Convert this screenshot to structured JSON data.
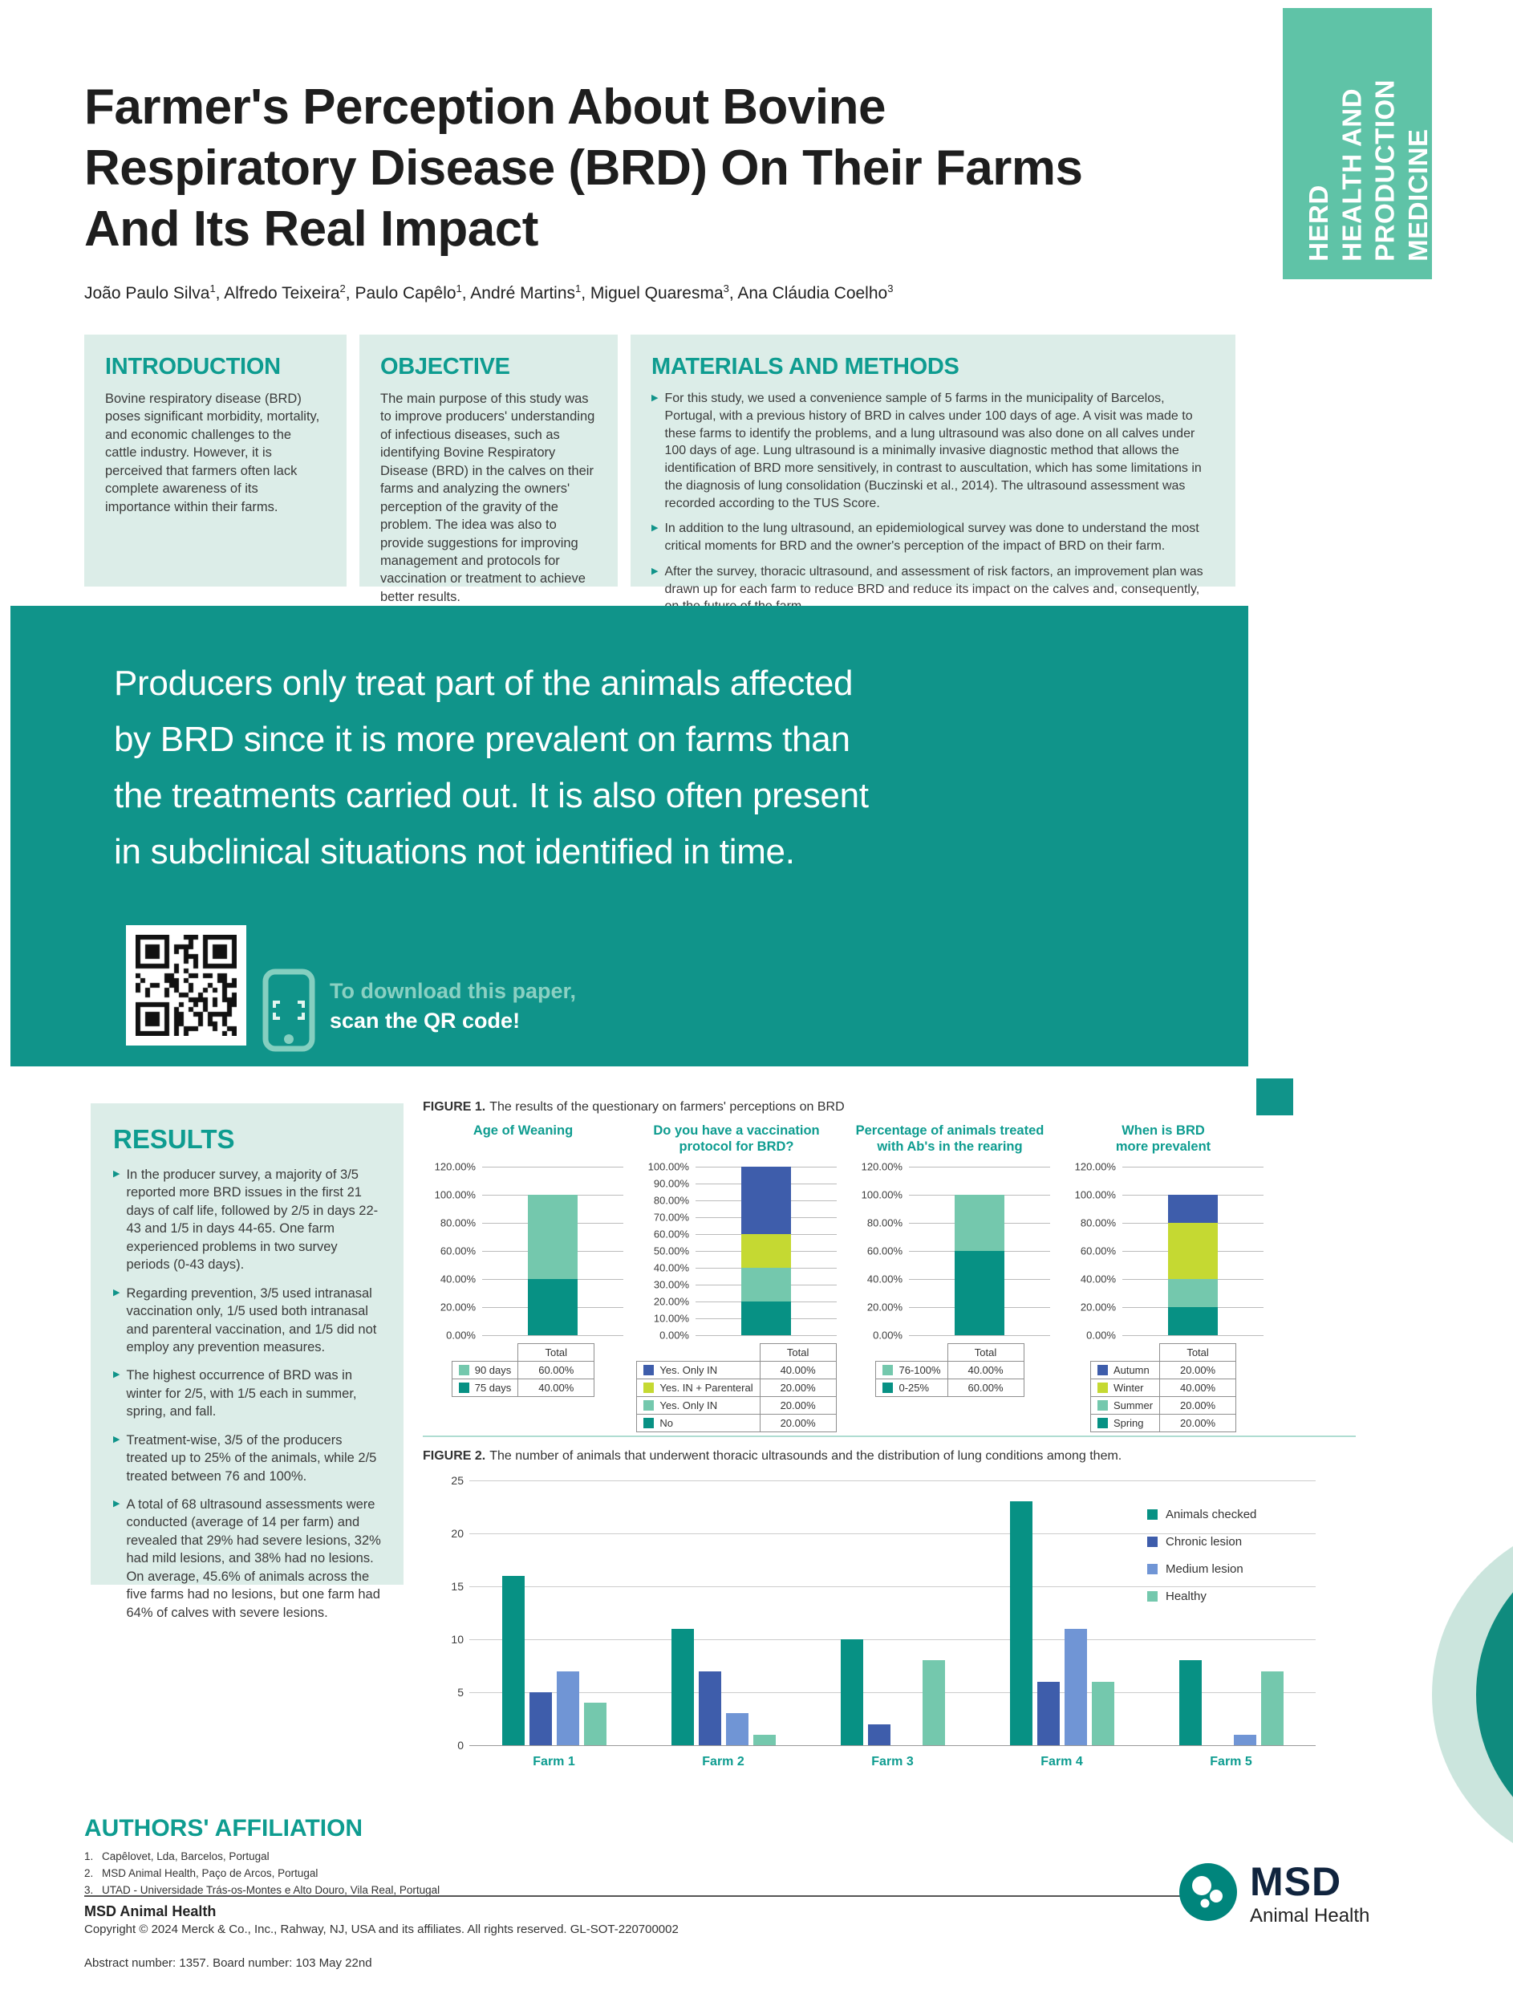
{
  "banner": {
    "label": "HERD\nHEALTH AND\nPRODUCTION\nMEDICINE"
  },
  "header": {
    "title_lines": [
      "Farmer's Perception About Bovine",
      "Respiratory Disease (BRD) On Their Farms",
      "And Its Real Impact"
    ],
    "authors": [
      {
        "name": "João Paulo Silva",
        "sup": "1"
      },
      {
        "name": "Alfredo Teixeira",
        "sup": "2"
      },
      {
        "name": "Paulo Capêlo",
        "sup": "1"
      },
      {
        "name": "André Martins",
        "sup": "1"
      },
      {
        "name": "Miguel Quaresma",
        "sup": "3"
      },
      {
        "name": "Ana Cláudia Coelho",
        "sup": "3"
      }
    ]
  },
  "sections": {
    "introduction": {
      "heading": "INTRODUCTION",
      "body": "Bovine respiratory disease (BRD) poses significant morbidity, mortality, and economic challenges to the cattle industry. However, it is perceived that farmers often lack complete awareness of its importance within their farms."
    },
    "objective": {
      "heading": "OBJECTIVE",
      "body": "The main purpose of this study was to improve producers' understanding of infectious diseases, such as identifying Bovine Respiratory Disease (BRD) in the calves on their farms and analyzing the owners' perception of the gravity of the problem. The idea was also to provide suggestions for improving management and protocols for vaccination or treatment to achieve better results."
    },
    "materials": {
      "heading": "MATERIALS AND METHODS",
      "bullets": [
        "For this study, we used a convenience sample of 5 farms in the municipality of Barcelos, Portugal, with a previous history of BRD in calves under 100 days of age. A visit was made to these farms to identify the problems, and a lung ultrasound was also done on all calves under 100 days of age. Lung ultrasound is a minimally invasive diagnostic method that allows the identification of BRD more sensitively, in contrast to auscultation, which has some limitations in the diagnosis of lung consolidation (Buczinski et al., 2014). The ultrasound assessment was recorded according to the TUS Score.",
        "In addition to the lung ultrasound, an epidemiological survey was done to understand the most critical moments for BRD and the owner's perception of the impact of BRD on their farm.",
        "After the survey, thoracic ultrasound, and assessment of risk factors, an improvement plan was drawn up for each farm to reduce BRD and reduce its impact on the calves and, consequently, on the future of the farm."
      ]
    }
  },
  "callout": {
    "lines": [
      "Producers only treat part of the animals affected",
      "by BRD since it is more prevalent on farms than",
      "the treatments carried out. It is also often present",
      "in subclinical situations not identified in time."
    ],
    "download_line1": "To download this paper,",
    "download_line2": "scan the QR code!"
  },
  "results": {
    "heading": "RESULTS",
    "bullets": [
      "In the producer survey, a majority of 3/5 reported more BRD issues in the first 21 days of calf life, followed by 2/5 in days 22-43 and 1/5 in days 44-65. One farm experienced problems in two survey periods (0-43 days).",
      "Regarding prevention, 3/5 used intranasal vaccination only, 1/5 used both intranasal and parenteral vaccination, and 1/5 did not employ any prevention measures.",
      "The highest occurrence of BRD was in winter for 2/5, with 1/5 each in summer, spring, and fall.",
      "Treatment-wise, 3/5 of the producers treated up to 25% of the animals, while 2/5 treated between 76 and 100%.",
      "A total of 68 ultrasound assessments were conducted (average of 14 per farm) and revealed that 29% had severe lesions, 32% had mild lesions, and 38% had no lesions. On average, 45.6% of animals across the five farms had no lesions, but one farm had 64% of calves with severe lesions."
    ]
  },
  "figure1": {
    "label": "FIGURE 1.",
    "caption": "The results of the questionary on farmers' perceptions on BRD"
  },
  "figure2": {
    "label": "FIGURE 2.",
    "caption": "The number of animals that underwent thoracic ultrasounds and the distribution of lung conditions among them."
  },
  "chart_data": [
    {
      "id": "age_of_weaning",
      "type": "bar",
      "subtype": "stacked_single_column",
      "title": "Age of Weaning",
      "ylim": [
        0,
        120
      ],
      "yticks": [
        "120.00%",
        "100.00%",
        "80.00%",
        "60.00%",
        "40.00%",
        "20.00%",
        "0.00%"
      ],
      "legend_header": "Total",
      "segments": [
        {
          "label": "90 days",
          "value": 60,
          "display": "60.00%",
          "color": "#74C8AD"
        },
        {
          "label": "75 days",
          "value": 40,
          "display": "40.00%",
          "color": "#079184"
        }
      ]
    },
    {
      "id": "vaccination_protocol",
      "type": "bar",
      "subtype": "stacked_single_column",
      "title": "Do you have a vaccination\nprotocol for BRD?",
      "ylim": [
        0,
        100
      ],
      "yticks": [
        "100.00%",
        "90.00%",
        "80.00%",
        "70.00%",
        "60.00%",
        "50.00%",
        "40.00%",
        "30.00%",
        "20.00%",
        "10.00%",
        "0.00%"
      ],
      "legend_header": "Total",
      "segments": [
        {
          "label": "Yes. Only IN",
          "value": 40,
          "display": "40.00%",
          "color": "#3E5DAB"
        },
        {
          "label": "Yes. IN + Parenteral",
          "value": 20,
          "display": "20.00%",
          "color": "#C5D932"
        },
        {
          "label": "Yes. Only IN",
          "value": 20,
          "display": "20.00%",
          "color": "#74C8AD"
        },
        {
          "label": "No",
          "value": 20,
          "display": "20.00%",
          "color": "#079184"
        }
      ]
    },
    {
      "id": "animals_treated_antibiotics",
      "type": "bar",
      "subtype": "stacked_single_column",
      "title": "Percentage of animals treated\nwith Ab's in the rearing",
      "ylim": [
        0,
        120
      ],
      "yticks": [
        "120.00%",
        "100.00%",
        "80.00%",
        "60.00%",
        "40.00%",
        "20.00%",
        "0.00%"
      ],
      "legend_header": "Total",
      "segments": [
        {
          "label": "76-100%",
          "value": 40,
          "display": "40.00%",
          "color": "#74C8AD"
        },
        {
          "label": "0-25%",
          "value": 60,
          "display": "60.00%",
          "color": "#079184"
        }
      ]
    },
    {
      "id": "brd_season_prevalence",
      "type": "bar",
      "subtype": "stacked_single_column",
      "title": "When is BRD\nmore prevalent",
      "ylim": [
        0,
        120
      ],
      "yticks": [
        "120.00%",
        "100.00%",
        "80.00%",
        "60.00%",
        "40.00%",
        "20.00%",
        "0.00%"
      ],
      "legend_header": "Total",
      "segments": [
        {
          "label": "Autumn",
          "value": 20,
          "display": "20.00%",
          "color": "#3E5DAB"
        },
        {
          "label": "Winter",
          "value": 40,
          "display": "40.00%",
          "color": "#C5D932"
        },
        {
          "label": "Summer",
          "value": 20,
          "display": "20.00%",
          "color": "#74C8AD"
        },
        {
          "label": "Spring",
          "value": 20,
          "display": "20.00%",
          "color": "#079184"
        }
      ]
    },
    {
      "id": "ultrasound_by_farm",
      "type": "bar",
      "subtype": "grouped",
      "categories": [
        "Farm 1",
        "Farm 2",
        "Farm 3",
        "Farm 4",
        "Farm 5"
      ],
      "series": [
        {
          "name": "Animals checked",
          "color": "#079184",
          "values": [
            16,
            11,
            10,
            23,
            8
          ]
        },
        {
          "name": "Chronic lesion",
          "color": "#3E5DAB",
          "values": [
            5,
            7,
            2,
            6,
            0
          ]
        },
        {
          "name": "Medium lesion",
          "color": "#7095D5",
          "values": [
            7,
            3,
            0,
            11,
            1
          ]
        },
        {
          "name": "Healthy",
          "color": "#74C8AD",
          "values": [
            4,
            1,
            8,
            6,
            7
          ]
        }
      ],
      "ylim": [
        0,
        25
      ],
      "yticks": [
        0,
        5,
        10,
        15,
        20,
        25
      ],
      "legend_position": "right",
      "grid": true
    }
  ],
  "affiliation": {
    "heading": "AUTHORS' AFFILIATION",
    "items": [
      "Capêlovet, Lda, Barcelos, Portugal",
      "MSD Animal Health, Paço de Arcos, Portugal",
      "UTAD - Universidade Trás-os-Montes e Alto Douro, Vila Real, Portugal"
    ]
  },
  "footer": {
    "company": "MSD Animal Health",
    "copyright": "Copyright © 2024 Merck & Co., Inc., Rahway, NJ, USA and its affiliates. All rights reserved. GL-SOT-220700002",
    "abstract": "Abstract number: 1357. Board number: 103 May 22nd",
    "logo_text": "MSD",
    "logo_sub": "Animal Health"
  },
  "colors": {
    "brand_teal": "#10948A",
    "mint": "#5FC3A7",
    "light_box": "#DCEDE8",
    "chart_dark_teal": "#079184",
    "chart_light_teal": "#74C8AD",
    "chart_blue": "#3E5DAB",
    "chart_light_blue": "#7095D5",
    "chart_yellow": "#C5D932"
  }
}
